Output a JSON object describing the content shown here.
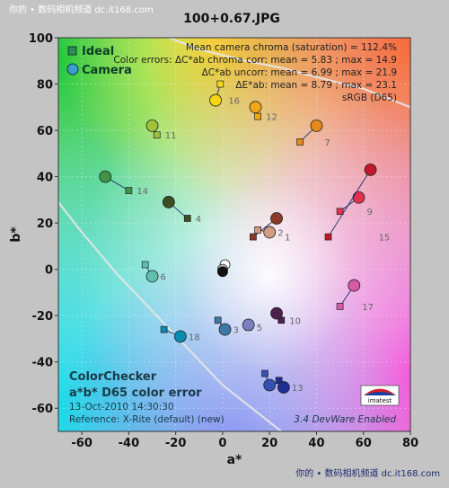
{
  "watermark_top": "你的 • 数码相机频道  dc.it168.com",
  "watermark_bottom": "你的 • 数码相机频道 dc.it168.com",
  "chart_data": {
    "type": "scatter",
    "title": "100+0.67.JPG",
    "xlabel": "a*",
    "ylabel": "b*",
    "xlim": [
      -70,
      80
    ],
    "ylim": [
      -70,
      100
    ],
    "xticks": [
      -60,
      -40,
      -20,
      0,
      20,
      40,
      60,
      80
    ],
    "yticks": [
      -60,
      -40,
      -20,
      0,
      20,
      40,
      60,
      80,
      100
    ],
    "grid": true,
    "legend": {
      "position": "top-left",
      "entries": [
        {
          "label": "Ideal",
          "marker": "square",
          "color": "#2e8b57"
        },
        {
          "label": "Camera",
          "marker": "circle",
          "color": "#3aa0c8"
        }
      ]
    },
    "stats": [
      "Mean camera chroma (saturation) = 112.4%",
      "Color errors: ΔC*ab chroma corr:  mean = 5.83 ;  max = 14.9",
      "ΔC*ab uncorr:  mean = 6.99 ;  max = 21.9",
      "ΔE*ab:  mean = 8.79 ;  max = 23.1",
      "sRGB (D65)"
    ],
    "info": {
      "heading1": "ColorChecker",
      "heading2": "a*b* D65 color error",
      "date": "13-Oct-2010 14:30:30",
      "reference": "Reference: X-Rite (default) (new)"
    },
    "footer_right": "3.4  DevWare Enabled",
    "logo": "imatest",
    "gamut_curve": [
      [
        -70,
        29
      ],
      [
        -60,
        16
      ],
      [
        -45,
        -2
      ],
      [
        -30,
        -18
      ],
      [
        -15,
        -34
      ],
      [
        0,
        -50
      ],
      [
        15,
        -62
      ],
      [
        25,
        -70
      ]
    ],
    "gamut_curve_top": [
      [
        -23,
        100
      ],
      [
        -10,
        95
      ],
      [
        10,
        90
      ],
      [
        25,
        87
      ],
      [
        40,
        83
      ],
      [
        60,
        78
      ],
      [
        80,
        70
      ]
    ],
    "patches": [
      {
        "id": "1",
        "ideal": [
          13,
          14
        ],
        "camera": [
          23,
          22
        ],
        "color": "#8a3a26"
      },
      {
        "id": "2",
        "ideal": [
          15,
          17
        ],
        "camera": [
          20,
          16
        ],
        "color": "#d49b83"
      },
      {
        "id": "3",
        "ideal": [
          -2,
          -22
        ],
        "camera": [
          1,
          -26
        ],
        "color": "#3f78a8"
      },
      {
        "id": "4",
        "ideal": [
          -15,
          22
        ],
        "camera": [
          -23,
          29
        ],
        "color": "#3b4f24"
      },
      {
        "id": "5",
        "ideal": [
          11,
          -25
        ],
        "camera": [
          11,
          -24
        ],
        "color": "#7b7fc0"
      },
      {
        "id": "6",
        "ideal": [
          -33,
          2
        ],
        "camera": [
          -30,
          -3
        ],
        "color": "#5fc0ad"
      },
      {
        "id": "7",
        "ideal": [
          33,
          55
        ],
        "camera": [
          40,
          62
        ],
        "color": "#e58a1c"
      },
      {
        "id": "8",
        "ideal": [
          18,
          -45
        ],
        "camera": [
          20,
          -50
        ],
        "color": "#3451b3"
      },
      {
        "id": "9",
        "ideal": [
          50,
          25
        ],
        "camera": [
          58,
          31
        ],
        "color": "#e0324f"
      },
      {
        "id": "10",
        "ideal": [
          25,
          -22
        ],
        "camera": [
          23,
          -19
        ],
        "color": "#4f1f4e"
      },
      {
        "id": "11",
        "ideal": [
          -28,
          58
        ],
        "camera": [
          -30,
          62
        ],
        "color": "#9ec23a"
      },
      {
        "id": "12",
        "ideal": [
          15,
          66
        ],
        "camera": [
          14,
          70
        ],
        "color": "#f2a616"
      },
      {
        "id": "13",
        "ideal": [
          24,
          -48
        ],
        "camera": [
          26,
          -51
        ],
        "color": "#1c2e96"
      },
      {
        "id": "14",
        "ideal": [
          -40,
          34
        ],
        "camera": [
          -50,
          40
        ],
        "color": "#3f9447"
      },
      {
        "id": "15",
        "ideal": [
          45,
          14
        ],
        "camera": [
          63,
          43
        ],
        "color": "#c0192a"
      },
      {
        "id": "16",
        "ideal": [
          -1,
          80
        ],
        "camera": [
          -3,
          73
        ],
        "color": "#f7d611"
      },
      {
        "id": "17",
        "ideal": [
          50,
          -16
        ],
        "camera": [
          56,
          -7
        ],
        "color": "#d65aa6"
      },
      {
        "id": "18",
        "ideal": [
          -25,
          -26
        ],
        "camera": [
          -18,
          -29
        ],
        "color": "#0a8bb0"
      }
    ],
    "neutrals": [
      {
        "camera": [
          1,
          2
        ],
        "color": "#ffffff"
      },
      {
        "camera": [
          0,
          0
        ],
        "color": "#c8c8c8"
      },
      {
        "camera": [
          0,
          -1
        ],
        "color": "#8a8a8a"
      },
      {
        "camera": [
          0,
          -1
        ],
        "color": "#111111"
      }
    ]
  }
}
